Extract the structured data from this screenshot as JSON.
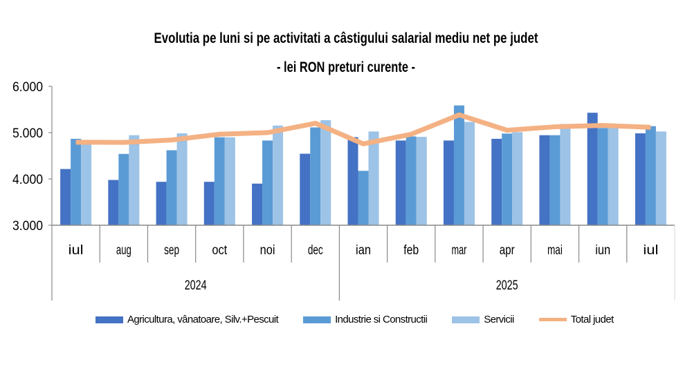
{
  "chart_data": {
    "type": "bar",
    "title": "Evolutia pe luni si pe activitati a câstigului salarial mediu net pe judet",
    "subtitle": "- lei RON preturi curente -",
    "xlabel": "",
    "ylabel": "",
    "ylim": [
      3000,
      6000
    ],
    "yticks": [
      3000,
      4000,
      5000,
      6000
    ],
    "ytick_labels": [
      "3.000",
      "4.000",
      "5.000",
      "6.000"
    ],
    "grid": false,
    "legend_position": "bottom",
    "categories": [
      "iul",
      "aug",
      "sep",
      "oct",
      "noi",
      "dec",
      "ian",
      "feb",
      "mar",
      "apr",
      "mai",
      "iun",
      "iul"
    ],
    "year_groups": [
      {
        "label": "2024",
        "start": 0,
        "end": 5
      },
      {
        "label": "2025",
        "start": 6,
        "end": 12
      }
    ],
    "series": [
      {
        "name": "Agricultura, vânatoare, Silv.+Pescuit",
        "type": "bar",
        "color": "#4472C4",
        "values": [
          4215,
          3978,
          3938,
          3938,
          3899,
          4545,
          4904,
          4830,
          4830,
          4867,
          4945,
          5430,
          4985
        ]
      },
      {
        "name": "Industrie si Constructii",
        "type": "bar",
        "color": "#5B9BD5",
        "values": [
          4867,
          4541,
          4620,
          4900,
          4830,
          5113,
          4175,
          4919,
          5588,
          4980,
          4945,
          5100,
          5140
        ]
      },
      {
        "name": "Servicii",
        "type": "bar",
        "color": "#9DC3E6",
        "values": [
          4780,
          4945,
          4985,
          4900,
          5153,
          5271,
          5025,
          4909,
          5232,
          5010,
          5188,
          5100,
          5025
        ]
      },
      {
        "name": "Total judet",
        "type": "line",
        "color": "#F4B183",
        "values": [
          4793,
          4790,
          4842,
          4966,
          5000,
          5203,
          4758,
          4966,
          5385,
          5052,
          5126,
          5156,
          5116
        ]
      }
    ]
  }
}
